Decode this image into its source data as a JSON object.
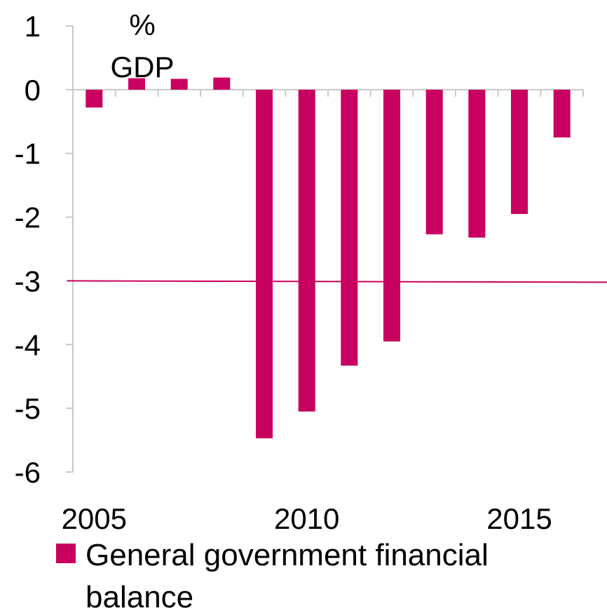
{
  "chart_data": {
    "type": "bar",
    "title": "",
    "unit_label_line1": "%",
    "unit_label_line2": "GDP",
    "xlabel": "",
    "ylabel": "",
    "x": [
      2005,
      2006,
      2007,
      2008,
      2009,
      2010,
      2011,
      2012,
      2013,
      2014,
      2015,
      2016
    ],
    "x_tick_labels": [
      "2005",
      "2010",
      "2015"
    ],
    "ylim": [
      -6,
      1
    ],
    "y_ticks": [
      1,
      0,
      -1,
      -2,
      -3,
      -4,
      -5,
      -6
    ],
    "y_tick_labels": [
      "1",
      "0",
      "-1",
      "-2",
      "-3",
      "-4",
      "-5",
      "-6"
    ],
    "series": [
      {
        "name": "General government financial balance",
        "color": "#c8005f",
        "values": [
          -0.28,
          0.18,
          0.17,
          0.19,
          -5.47,
          -5.05,
          -4.33,
          -3.95,
          -2.27,
          -2.32,
          -1.95,
          -0.75
        ]
      }
    ],
    "reference_line": {
      "y": -3,
      "color": "#c8005f"
    },
    "legend_line1": "General government financial",
    "legend_line2": "balance",
    "legend_position": "bottom-left",
    "grid": false
  }
}
